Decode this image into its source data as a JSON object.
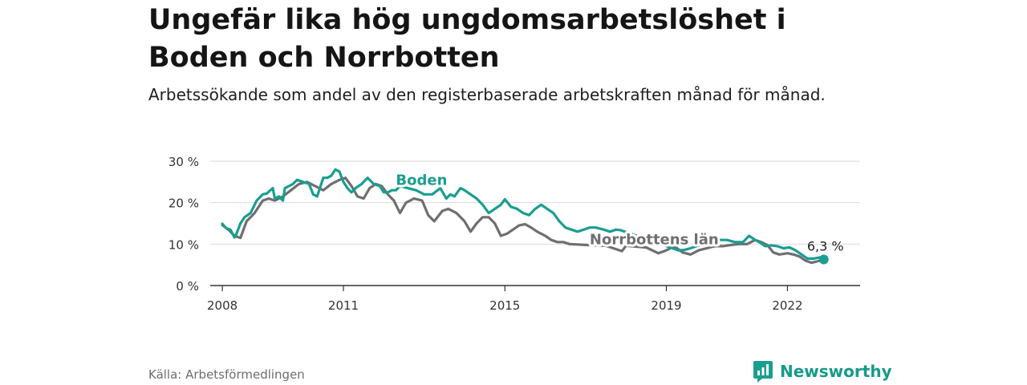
{
  "title": "Ungefär lika hög ungdomsarbetslöshet i Boden och Norrbotten",
  "subtitle": "Arbetssökande som andel av den registerbaserade arbetskraften månad för månad.",
  "source": "Källa: Arbetsförmedlingen",
  "brand": "Newsworthy",
  "colors": {
    "boden": "#1a9e90",
    "norrbotten": "#6f6f73",
    "grid": "#d9d9d9",
    "axis": "#333333"
  },
  "chart_data": {
    "type": "line",
    "title": "Ungefär lika hög ungdomsarbetslöshet i Boden och Norrbotten",
    "xlabel": "",
    "ylabel": "",
    "xlim": [
      2007.7,
      2023.8
    ],
    "ylim": [
      0,
      30
    ],
    "y_ticks": [
      0,
      10,
      20,
      30
    ],
    "y_tick_labels": [
      "0 %",
      "10 %",
      "20 %",
      "30 %"
    ],
    "x_ticks": [
      2008,
      2011,
      2015,
      2019,
      2022
    ],
    "x_tick_labels": [
      "2008",
      "2011",
      "2015",
      "2019",
      "2022"
    ],
    "grid": true,
    "end_label": "6,3 %",
    "series": [
      {
        "name": "Boden",
        "label": "Boden",
        "x": [
          2008.0,
          2008.1,
          2008.2,
          2008.3,
          2008.35,
          2008.45,
          2008.55,
          2008.7,
          2008.85,
          2009.0,
          2009.1,
          2009.25,
          2009.3,
          2009.4,
          2009.5,
          2009.55,
          2009.65,
          2009.75,
          2009.85,
          2010.0,
          2010.15,
          2010.25,
          2010.35,
          2010.5,
          2010.6,
          2010.7,
          2010.8,
          2010.9,
          2011.0,
          2011.1,
          2011.2,
          2011.3,
          2011.45,
          2011.6,
          2011.75,
          2011.9,
          2012.0,
          2012.1,
          2012.2,
          2012.3,
          2012.4,
          2012.6,
          2012.8,
          2013.0,
          2013.2,
          2013.4,
          2013.55,
          2013.65,
          2013.75,
          2013.9,
          2014.0,
          2014.15,
          2014.3,
          2014.45,
          2014.6,
          2014.75,
          2014.9,
          2015.0,
          2015.15,
          2015.3,
          2015.45,
          2015.6,
          2015.75,
          2015.9,
          2016.05,
          2016.2,
          2016.35,
          2016.5,
          2016.65,
          2016.8,
          2016.95,
          2017.1,
          2017.25,
          2017.45,
          2017.6,
          2017.75,
          2017.85,
          2019.3,
          2019.45,
          2019.6,
          2019.75,
          2019.9,
          2020.05,
          2020.2,
          2020.35,
          2020.5,
          2020.7,
          2020.9,
          2021.05,
          2021.2,
          2021.3,
          2021.45,
          2021.6,
          2021.75,
          2021.9,
          2022.05,
          2022.2,
          2022.35,
          2022.5,
          2022.65,
          2022.8,
          2022.9
        ],
        "values": [
          14.9,
          13.8,
          13.5,
          11.6,
          12.5,
          15.0,
          16.5,
          17.5,
          20.5,
          22.0,
          22.2,
          23.5,
          21.0,
          21.5,
          20.5,
          23.5,
          24.0,
          24.5,
          25.5,
          25.0,
          24.5,
          22.0,
          21.5,
          26.0,
          26.0,
          26.5,
          28.0,
          27.5,
          25.0,
          23.5,
          22.5,
          23.5,
          24.5,
          26.0,
          24.5,
          24.0,
          22.5,
          22.5,
          23.0,
          23.0,
          24.0,
          23.5,
          23.0,
          22.0,
          22.0,
          23.5,
          21.0,
          22.0,
          21.5,
          23.5,
          23.0,
          22.0,
          21.0,
          19.5,
          17.5,
          18.5,
          19.5,
          20.8,
          19.0,
          18.5,
          17.5,
          17.0,
          18.5,
          19.5,
          18.5,
          17.5,
          15.5,
          14.0,
          13.5,
          13.0,
          13.5,
          14.0,
          14.0,
          13.5,
          13.0,
          13.5,
          13.4,
          8.5,
          8.6,
          9.0,
          9.5,
          10.0,
          10.5,
          11.5,
          11.0,
          11.0,
          10.5,
          10.5,
          12.0,
          11.0,
          10.5,
          9.5,
          9.7,
          9.5,
          9.0,
          9.2,
          8.5,
          7.5,
          6.5,
          6.5,
          6.8,
          6.3
        ]
      },
      {
        "name": "Norrbottens län",
        "label": "Norrbottens län",
        "x": [
          2008.0,
          2008.15,
          2008.3,
          2008.45,
          2008.6,
          2008.8,
          2009.0,
          2009.15,
          2009.3,
          2009.5,
          2009.7,
          2009.9,
          2010.1,
          2010.3,
          2010.5,
          2010.7,
          2010.9,
          2011.05,
          2011.2,
          2011.35,
          2011.5,
          2011.65,
          2011.8,
          2011.95,
          2012.1,
          2012.25,
          2012.4,
          2012.55,
          2012.75,
          2012.95,
          2013.1,
          2013.25,
          2013.45,
          2013.6,
          2013.8,
          2014.0,
          2014.15,
          2014.3,
          2014.45,
          2014.6,
          2014.75,
          2014.9,
          2015.05,
          2015.2,
          2015.35,
          2015.5,
          2015.65,
          2015.8,
          2016.0,
          2016.15,
          2016.3,
          2016.45,
          2016.6,
          2017.0,
          2017.5,
          2017.9,
          2018.0,
          2018.5,
          2018.8,
          2019.0,
          2019.2,
          2019.4,
          2019.6,
          2019.8,
          2020.0,
          2020.2,
          2020.4,
          2020.6,
          2020.8,
          2021.0,
          2021.2,
          2021.35,
          2021.5,
          2021.65,
          2021.8,
          2022.0,
          2022.15,
          2022.3,
          2022.45,
          2022.6,
          2022.8,
          2022.9
        ],
        "values": [
          14.6,
          13.5,
          12.0,
          11.5,
          15.5,
          17.5,
          20.5,
          21.0,
          20.5,
          21.5,
          23.0,
          24.5,
          25.0,
          24.0,
          23.0,
          24.5,
          25.5,
          26.0,
          24.0,
          21.5,
          21.0,
          23.5,
          24.5,
          24.0,
          22.0,
          20.5,
          17.5,
          20.0,
          21.0,
          20.5,
          17.0,
          15.5,
          18.0,
          18.5,
          17.5,
          15.5,
          13.0,
          15.0,
          16.5,
          16.5,
          15.0,
          12.0,
          12.5,
          13.5,
          14.5,
          14.8,
          14.0,
          13.0,
          12.0,
          11.0,
          10.5,
          10.5,
          10.0,
          9.8,
          9.6,
          8.3,
          9.6,
          9.2,
          7.8,
          8.5,
          9.5,
          8.0,
          7.5,
          8.5,
          9.0,
          9.5,
          9.5,
          9.8,
          10.0,
          10.0,
          11.0,
          10.5,
          9.8,
          8.0,
          7.5,
          7.8,
          7.5,
          7.0,
          6.0,
          5.5,
          6.0,
          6.2
        ]
      }
    ]
  }
}
